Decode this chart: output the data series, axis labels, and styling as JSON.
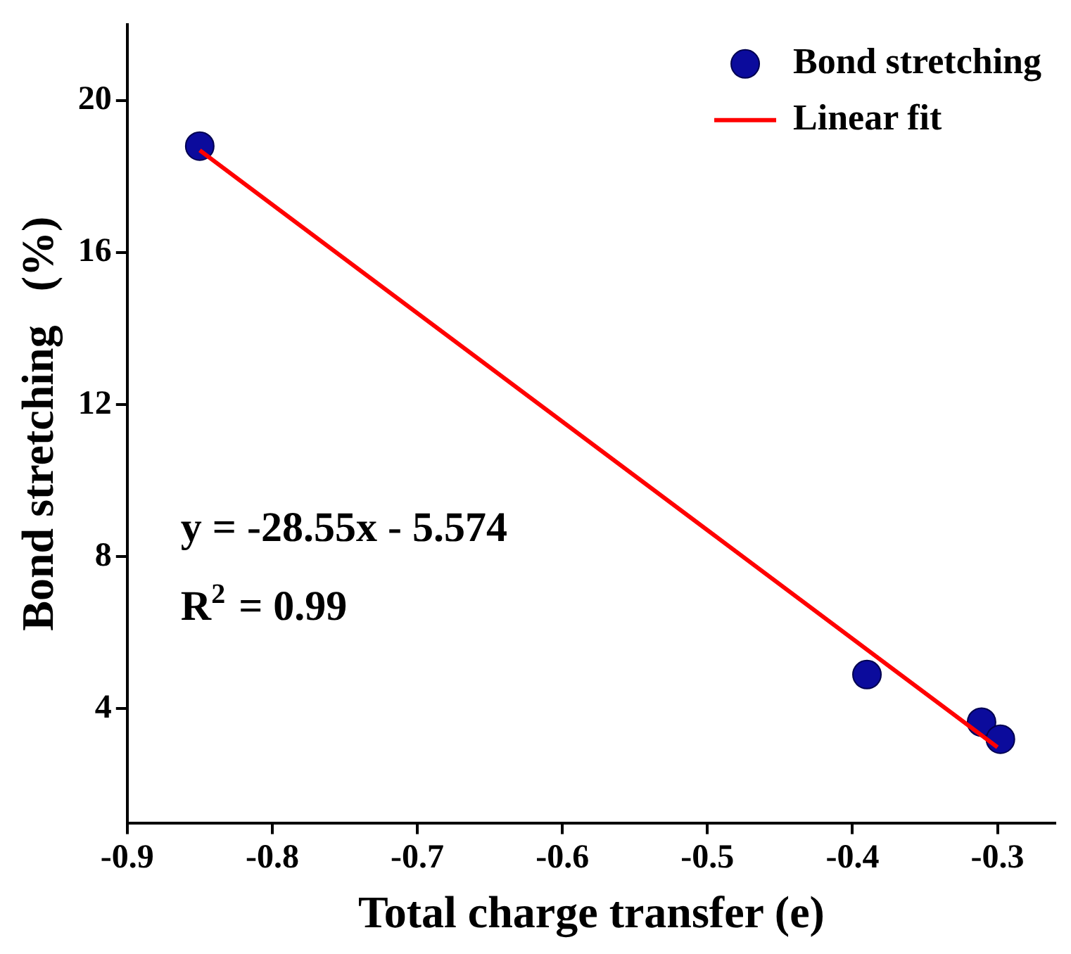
{
  "chart_data": {
    "type": "scatter",
    "xlabel": "Total charge transfer (e)",
    "ylabel": "Bond stretching   (%)",
    "xlim": [
      -0.9,
      -0.26
    ],
    "xticks": [
      -0.9,
      -0.8,
      -0.7,
      -0.6,
      -0.5,
      -0.4,
      -0.3
    ],
    "ylim": [
      1,
      22
    ],
    "yticks": [
      4,
      8,
      12,
      16,
      20
    ],
    "grid": false,
    "legend": "top right",
    "marker": "circle",
    "series": [
      {
        "name": "Bond stretching",
        "type": "scatter",
        "color": "#0b0b9c",
        "x": [
          -0.85,
          -0.39,
          -0.311,
          -0.298
        ],
        "values": [
          18.8,
          4.9,
          3.65,
          3.2
        ]
      },
      {
        "name": "Linear fit",
        "type": "line",
        "color": "#ff0000",
        "x": [
          -0.85,
          -0.3
        ],
        "values": [
          18.69,
          2.99
        ],
        "marker": "none",
        "line_style": "solid"
      }
    ],
    "annotations": [
      "y = -28.55x - 5.574",
      "R$^{2}$ = 0.99"
    ]
  }
}
